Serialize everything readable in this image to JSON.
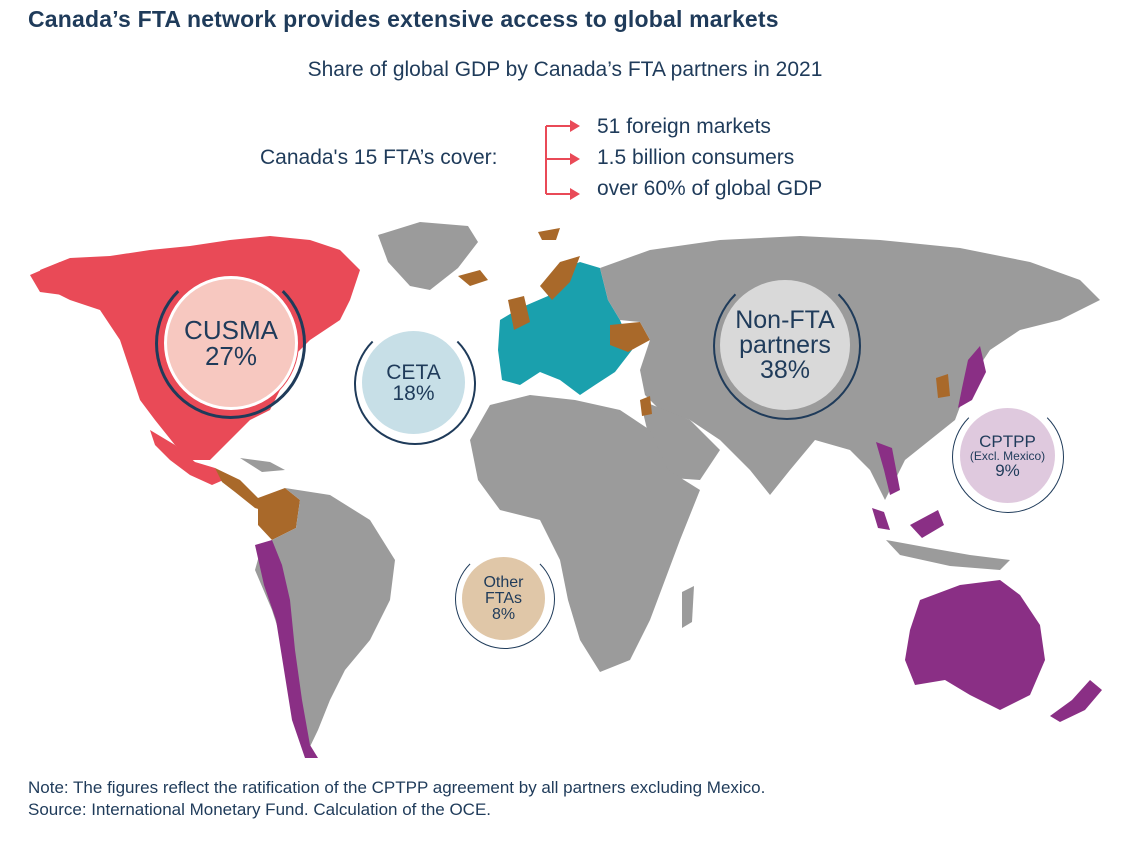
{
  "title": "Canada’s FTA network provides extensive access to global markets",
  "subtitle": "Share of global GDP by Canada’s FTA partners in 2021",
  "lead": "Canada's 15 FTA’s cover:",
  "stats": [
    "51 foreign markets",
    "1.5 billion consumers",
    "over 60% of global GDP"
  ],
  "groups": [
    {
      "id": "cusma",
      "name": "CUSMA",
      "share": "27%",
      "color": "#e94a57"
    },
    {
      "id": "ceta",
      "name": "CETA",
      "share": "18%",
      "color": "#1aa0ad"
    },
    {
      "id": "non_fta",
      "name": "Non-FTA partners",
      "line1": "Non-FTA",
      "line2": "partners",
      "share": "38%",
      "color": "#9b9b9b"
    },
    {
      "id": "cptpp",
      "name": "CPTPP",
      "qualifier": "(Excl. Mexico)",
      "share": "9%",
      "color": "#8a2f85"
    },
    {
      "id": "other",
      "name": "Other FTAs",
      "line1": "Other",
      "line2": "FTAs",
      "share": "8%",
      "color": "#a9692a"
    }
  ],
  "colors": {
    "text": "#1f3b5a",
    "arrow": "#e94a57",
    "land_other": "#9b9b9b"
  },
  "note": "Note: The figures reflect the ratification of the CPTPP agreement by all partners excluding Mexico.",
  "source": "Source: International Monetary Fund. Calculation of the OCE."
}
